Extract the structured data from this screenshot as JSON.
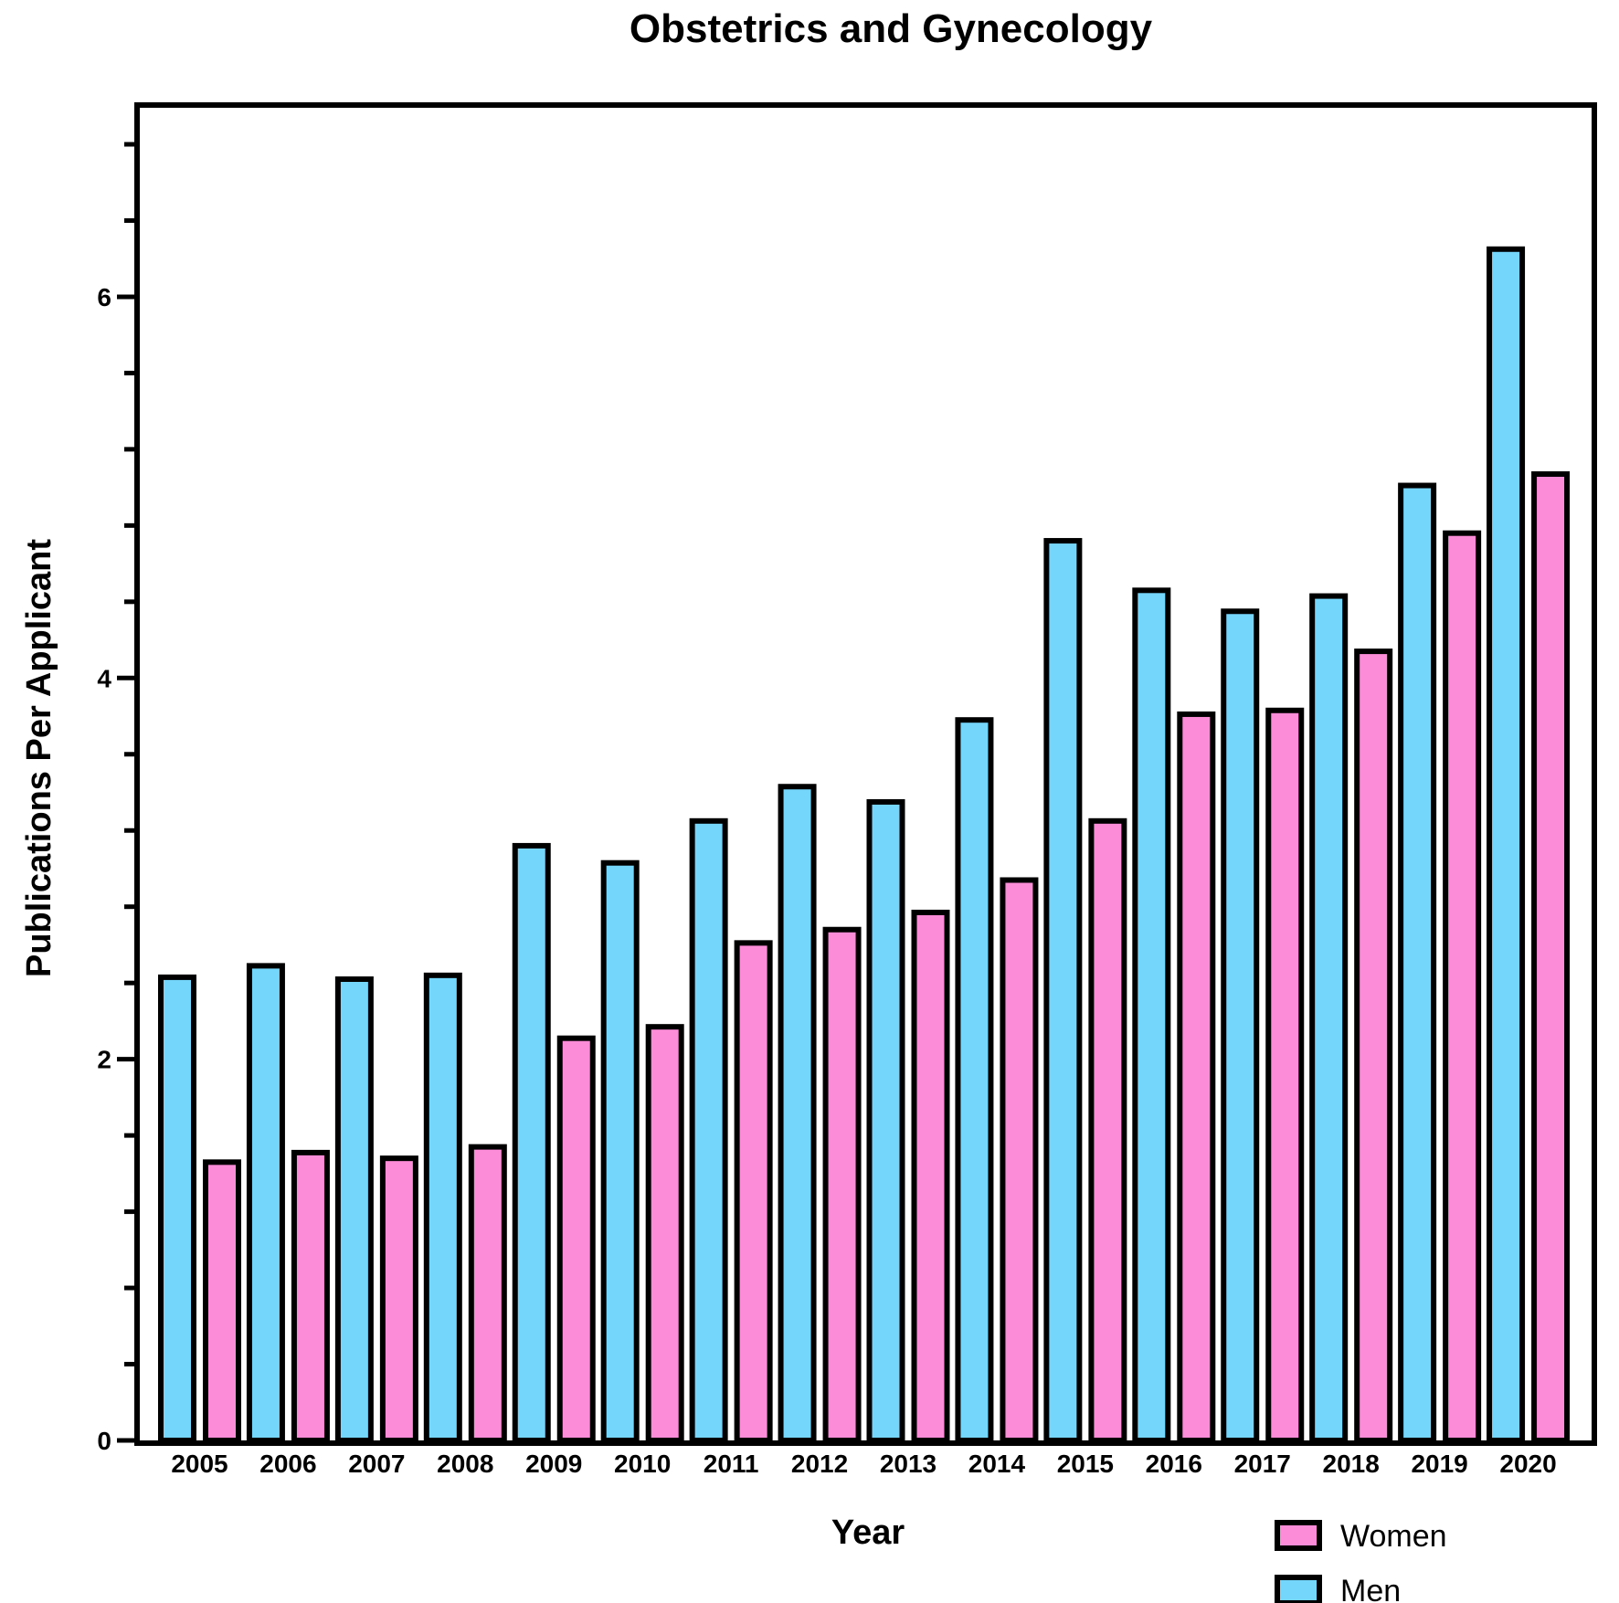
{
  "chart_data": {
    "type": "bar",
    "title": "Obstetrics and Gynecology",
    "xlabel": "Year",
    "ylabel": "Publications Per Applicant",
    "ylim": [
      0,
      6.8
    ],
    "y_major_ticks": [
      0,
      2,
      4,
      6
    ],
    "y_minor_step": 0.4,
    "grid": false,
    "legend_position": "bottom-right",
    "categories": [
      "2005",
      "2006",
      "2007",
      "2008",
      "2009",
      "2010",
      "2011",
      "2012",
      "2013",
      "2014",
      "2015",
      "2016",
      "2017",
      "2018",
      "2019",
      "2020"
    ],
    "series": [
      {
        "name": "Men",
        "color": "#75d6fc",
        "values": [
          2.43,
          2.49,
          2.42,
          2.44,
          3.12,
          3.03,
          3.25,
          3.43,
          3.35,
          3.78,
          4.72,
          4.46,
          4.35,
          4.43,
          5.01,
          6.25
        ]
      },
      {
        "name": "Women",
        "color": "#fc8bd8",
        "values": [
          1.46,
          1.51,
          1.48,
          1.54,
          2.11,
          2.17,
          2.61,
          2.68,
          2.77,
          2.94,
          3.25,
          3.81,
          3.83,
          4.14,
          4.76,
          5.07
        ]
      }
    ],
    "legend": [
      {
        "label": "Women",
        "color": "#fc8bd8"
      },
      {
        "label": "Men",
        "color": "#75d6fc"
      }
    ]
  }
}
